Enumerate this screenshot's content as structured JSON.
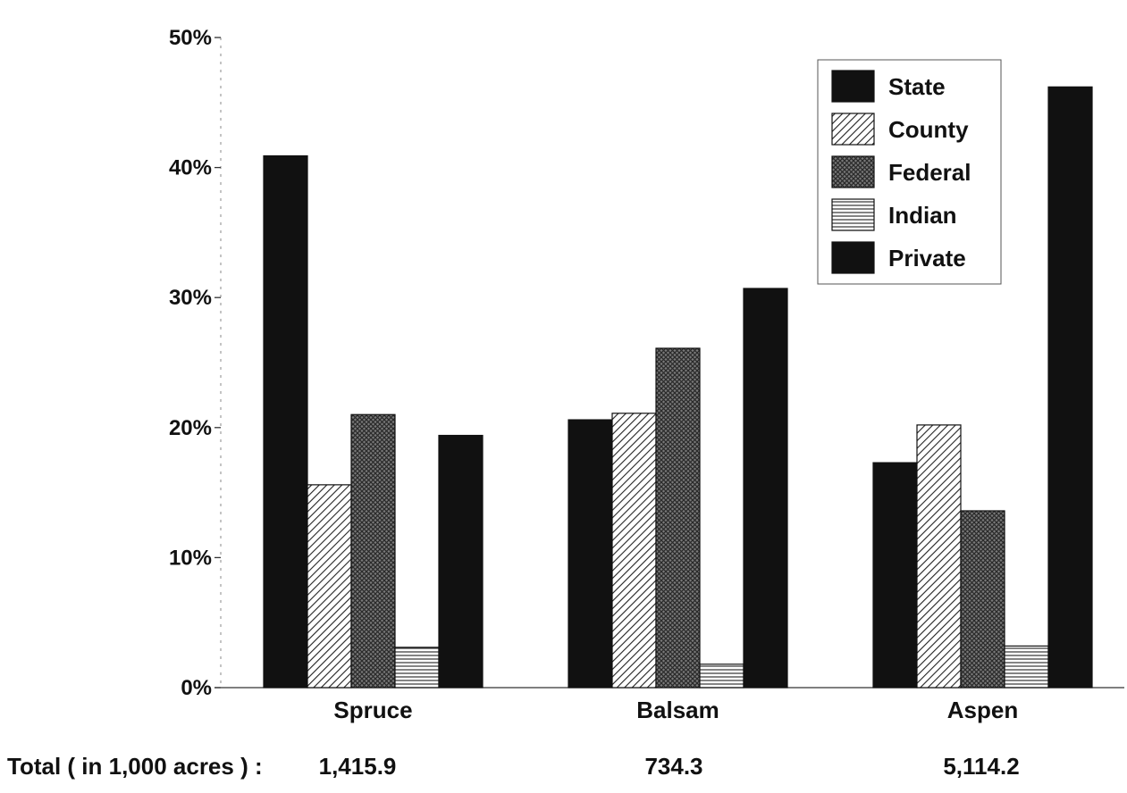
{
  "chart_data": {
    "type": "bar",
    "categories": [
      "Spruce",
      "Balsam",
      "Aspen"
    ],
    "series": [
      {
        "name": "State",
        "values": [
          40.9,
          20.6,
          17.3
        ],
        "pattern": "solid"
      },
      {
        "name": "County",
        "values": [
          15.6,
          21.1,
          20.2
        ],
        "pattern": "diagonal"
      },
      {
        "name": "Federal",
        "values": [
          21.0,
          26.1,
          13.6
        ],
        "pattern": "crosshatch"
      },
      {
        "name": "Indian",
        "values": [
          3.1,
          1.8,
          3.2
        ],
        "pattern": "horizontal"
      },
      {
        "name": "Private",
        "values": [
          19.4,
          30.7,
          46.2
        ],
        "pattern": "solid"
      }
    ],
    "ylim": [
      0,
      50
    ],
    "yticks": [
      0,
      10,
      20,
      30,
      40,
      50
    ],
    "ytick_labels": [
      "0%",
      "10%",
      "20%",
      "30%",
      "40%",
      "50%"
    ],
    "legend_position": "top-right",
    "grid": false,
    "totals_label": "Total ( in 1,000 acres ) : ",
    "totals": [
      "1,415.9",
      "734.3",
      "5,114.2"
    ],
    "bar_color": "#111111"
  }
}
